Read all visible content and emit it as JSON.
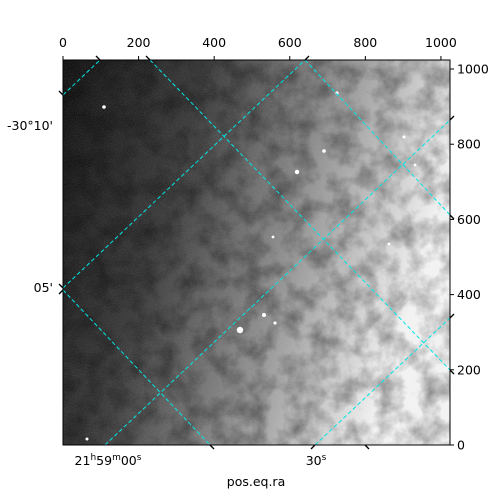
{
  "chart_data": {
    "type": "image",
    "xlabel": "pos.eq.ra",
    "xlim": [
      0,
      1024
    ],
    "xticks": [
      0,
      200,
      400,
      600,
      800,
      1000
    ],
    "ylim": [
      0,
      1024
    ],
    "yticks": [
      0,
      200,
      400,
      600,
      800,
      1000
    ],
    "ra_labels": [
      [
        "21",
        "h",
        "59",
        "m",
        "00",
        "s"
      ],
      [
        "30",
        "s"
      ]
    ],
    "dec_labels": [
      "-30°10'",
      "05'"
    ],
    "grid_color": "#00e5e5"
  }
}
